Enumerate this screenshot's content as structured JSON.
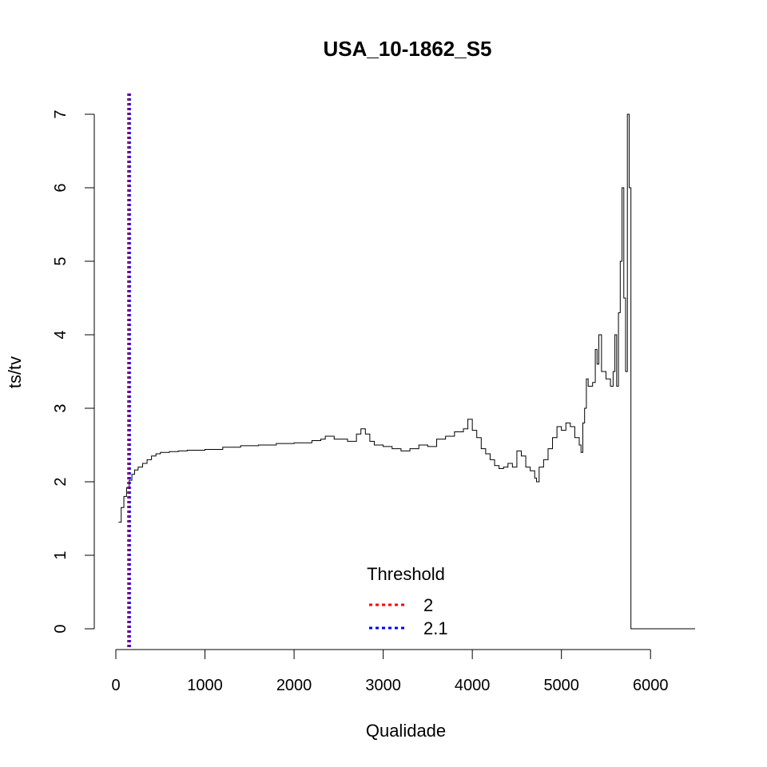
{
  "chart_data": {
    "type": "line",
    "title": "USA_10-1862_S5",
    "xlabel": "Qualidade",
    "ylabel": "ts/tv",
    "xlim": [
      0,
      6500
    ],
    "ylim": [
      0,
      7
    ],
    "x_ticks": [
      "0",
      "1000",
      "2000",
      "3000",
      "4000",
      "5000",
      "6000"
    ],
    "y_ticks": [
      "0",
      "1",
      "2",
      "3",
      "4",
      "5",
      "6",
      "7"
    ],
    "grid": false,
    "series": [
      {
        "color": "#000000",
        "x": [
          30,
          60,
          90,
          120,
          150,
          180,
          210,
          250,
          300,
          350,
          400,
          450,
          500,
          600,
          700,
          800,
          900,
          1000,
          1200,
          1400,
          1600,
          1800,
          2000,
          2200,
          2300,
          2350,
          2450,
          2600,
          2700,
          2750,
          2800,
          2850,
          2900,
          3000,
          3100,
          3200,
          3300,
          3400,
          3500,
          3600,
          3700,
          3800,
          3900,
          3950,
          4000,
          4050,
          4100,
          4150,
          4200,
          4250,
          4300,
          4350,
          4400,
          4450,
          4500,
          4550,
          4600,
          4650,
          4700,
          4720,
          4750,
          4800,
          4850,
          4900,
          4950,
          5000,
          5050,
          5100,
          5150,
          5200,
          5220,
          5240,
          5260,
          5280,
          5300,
          5350,
          5380,
          5400,
          5420,
          5450,
          5500,
          5550,
          5580,
          5600,
          5620,
          5640,
          5660,
          5680,
          5700,
          5720,
          5740,
          5760,
          5780,
          5800,
          6000,
          6200,
          6500
        ],
        "y": [
          1.45,
          1.65,
          1.8,
          1.92,
          2.02,
          2.1,
          2.16,
          2.2,
          2.25,
          2.3,
          2.35,
          2.38,
          2.4,
          2.41,
          2.42,
          2.43,
          2.43,
          2.44,
          2.47,
          2.49,
          2.5,
          2.52,
          2.53,
          2.56,
          2.58,
          2.62,
          2.58,
          2.55,
          2.65,
          2.72,
          2.65,
          2.55,
          2.5,
          2.48,
          2.45,
          2.42,
          2.45,
          2.5,
          2.48,
          2.58,
          2.62,
          2.68,
          2.72,
          2.85,
          2.7,
          2.6,
          2.45,
          2.38,
          2.3,
          2.22,
          2.18,
          2.2,
          2.25,
          2.2,
          2.42,
          2.35,
          2.2,
          2.15,
          2.05,
          2.0,
          2.2,
          2.3,
          2.45,
          2.6,
          2.75,
          2.7,
          2.8,
          2.75,
          2.6,
          2.5,
          2.4,
          2.8,
          3.0,
          3.4,
          3.3,
          3.35,
          3.8,
          3.6,
          4.0,
          3.5,
          3.4,
          3.3,
          3.5,
          4.0,
          3.3,
          4.3,
          5.0,
          6.0,
          4.5,
          3.5,
          7.0,
          6.0,
          0.0,
          0.0,
          0.0,
          0.0,
          0.0
        ]
      },
      {
        "name": "2",
        "color": "#ff0000",
        "style": "dotted-vertical",
        "xline": 140
      },
      {
        "name": "2.1",
        "color": "#0000ff",
        "style": "dotted-vertical",
        "xline": 155
      }
    ],
    "legend": {
      "title": "Threshold",
      "entries": [
        "2",
        "2.1"
      ],
      "colors": [
        "#ff0000",
        "#0000ff"
      ],
      "placement": "bottom-center"
    }
  }
}
